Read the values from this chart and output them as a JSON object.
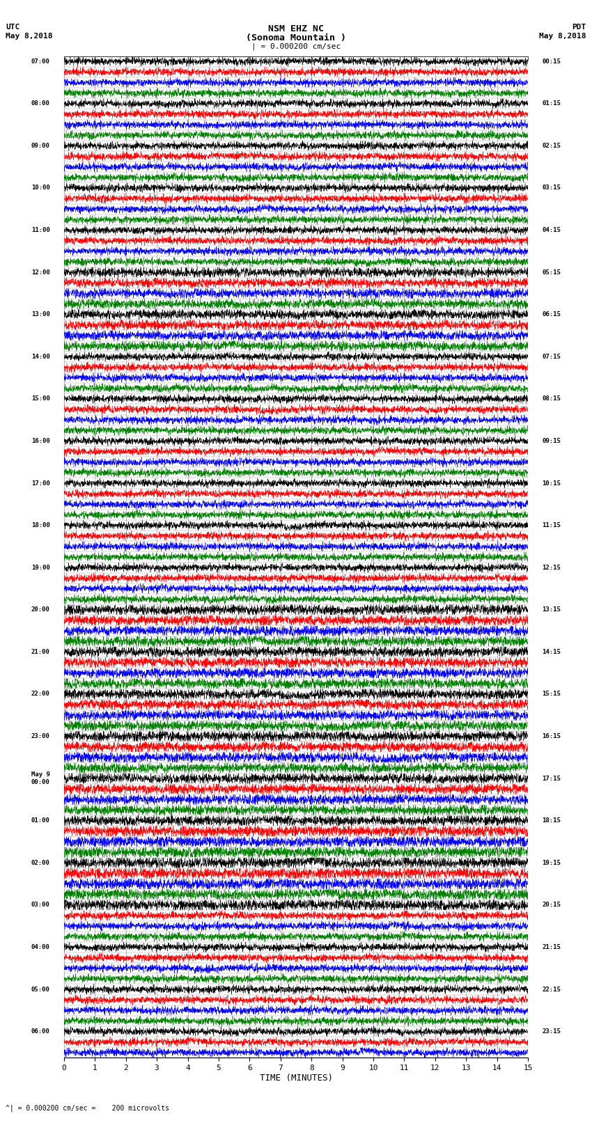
{
  "title_line1": "NSM EHZ NC",
  "title_line2": "(Sonoma Mountain )",
  "title_line3": "| = 0.000200 cm/sec",
  "left_header_line1": "UTC",
  "left_header_line2": "May 8,2018",
  "right_header_line1": "PDT",
  "right_header_line2": "May 8,2018",
  "xlabel": "TIME (MINUTES)",
  "footer": "^| = 0.000200 cm/sec =    200 microvolts",
  "xlim": [
    0,
    15
  ],
  "xticks": [
    0,
    1,
    2,
    3,
    4,
    5,
    6,
    7,
    8,
    9,
    10,
    11,
    12,
    13,
    14,
    15
  ],
  "utc_labels": [
    "07:00",
    "",
    "",
    "",
    "08:00",
    "",
    "",
    "",
    "09:00",
    "",
    "",
    "",
    "10:00",
    "",
    "",
    "",
    "11:00",
    "",
    "",
    "",
    "12:00",
    "",
    "",
    "",
    "13:00",
    "",
    "",
    "",
    "14:00",
    "",
    "",
    "",
    "15:00",
    "",
    "",
    "",
    "16:00",
    "",
    "",
    "",
    "17:00",
    "",
    "",
    "",
    "18:00",
    "",
    "",
    "",
    "19:00",
    "",
    "",
    "",
    "20:00",
    "",
    "",
    "",
    "21:00",
    "",
    "",
    "",
    "22:00",
    "",
    "",
    "",
    "23:00",
    "",
    "",
    "",
    "May 9\n00:00",
    "",
    "",
    "",
    "01:00",
    "",
    "",
    "",
    "02:00",
    "",
    "",
    "",
    "03:00",
    "",
    "",
    "",
    "04:00",
    "",
    "",
    "",
    "05:00",
    "",
    "",
    "",
    "06:00",
    "",
    ""
  ],
  "pdt_labels": [
    "00:15",
    "",
    "",
    "",
    "01:15",
    "",
    "",
    "",
    "02:15",
    "",
    "",
    "",
    "03:15",
    "",
    "",
    "",
    "04:15",
    "",
    "",
    "",
    "05:15",
    "",
    "",
    "",
    "06:15",
    "",
    "",
    "",
    "07:15",
    "",
    "",
    "",
    "08:15",
    "",
    "",
    "",
    "09:15",
    "",
    "",
    "",
    "10:15",
    "",
    "",
    "",
    "11:15",
    "",
    "",
    "",
    "12:15",
    "",
    "",
    "",
    "13:15",
    "",
    "",
    "",
    "14:15",
    "",
    "",
    "",
    "15:15",
    "",
    "",
    "",
    "16:15",
    "",
    "",
    "",
    "17:15",
    "",
    "",
    "",
    "18:15",
    "",
    "",
    "",
    "19:15",
    "",
    "",
    "",
    "20:15",
    "",
    "",
    "",
    "21:15",
    "",
    "",
    "",
    "22:15",
    "",
    "",
    "",
    "23:15",
    "",
    ""
  ],
  "trace_colors": [
    "black",
    "red",
    "blue",
    "green"
  ],
  "traces_per_row": 4,
  "background_color": "#ffffff",
  "grid_color": "#999999",
  "fig_width": 8.5,
  "fig_height": 16.13,
  "dpi": 100
}
